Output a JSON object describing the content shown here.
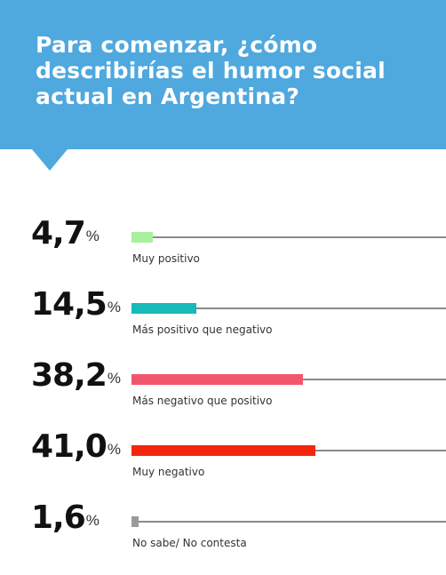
{
  "header": {
    "title": "Para comenzar, ¿cómo describirías el humor social actual en Argentina?"
  },
  "colors": {
    "header_bg": "#4fa8de",
    "track": "#8a8a8a"
  },
  "chart_data": {
    "type": "bar",
    "orientation": "horizontal",
    "title": "Para comenzar, ¿cómo describirías el humor social actual en Argentina?",
    "unit": "%",
    "xlim": [
      0,
      100
    ],
    "grid": false,
    "categories": [
      "Muy positivo",
      "Más positivo que negativo",
      "Más negativo que positivo",
      "Muy negativo",
      "No sabe/ No contesta"
    ],
    "values": [
      4.7,
      14.5,
      38.2,
      41.0,
      1.6
    ],
    "value_labels": [
      "4,7",
      "14,5",
      "38,2",
      "41,0",
      "1,6"
    ],
    "percent_symbol": "%",
    "colors": [
      "#a8ef9e",
      "#18b9b9",
      "#f2566f",
      "#f3250e",
      "#9a9a9a"
    ]
  }
}
